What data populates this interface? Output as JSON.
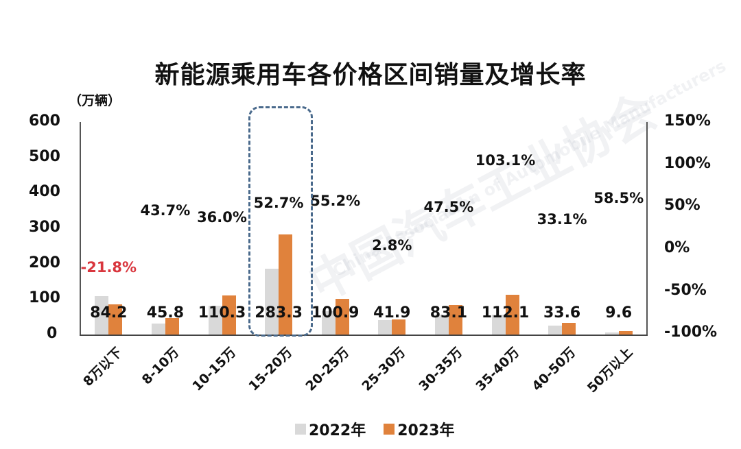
{
  "title": "新能源乘用车各价格区间销量及增长率",
  "left_axis_unit": "（万辆）",
  "left_axis_ticks": [
    "600",
    "500",
    "400",
    "300",
    "200",
    "100",
    "0"
  ],
  "right_axis_ticks": [
    "150%",
    "100%",
    "50%",
    "0%",
    "-50%",
    "-100%"
  ],
  "legend": [
    {
      "label": "2022年",
      "color": "#d9d9d9"
    },
    {
      "label": "2023年",
      "color": "#e0823c"
    }
  ],
  "watermark": {
    "cn": "中国汽车工业协会",
    "en": "China Association of Automobile Manufacturers"
  },
  "highlight_category": "15-20万",
  "categories": [
    {
      "label": "8万以下",
      "v2022": 107.7,
      "v2023": 84.2,
      "v2023_label": "84.2",
      "growth": -21.8,
      "growth_label": "-21.8%"
    },
    {
      "label": "8-10万",
      "v2022": 31.9,
      "v2023": 45.8,
      "v2023_label": "45.8",
      "growth": 43.7,
      "growth_label": "43.7%"
    },
    {
      "label": "10-15万",
      "v2022": 81.1,
      "v2023": 110.3,
      "v2023_label": "110.3",
      "growth": 36.0,
      "growth_label": "36.0%"
    },
    {
      "label": "15-20万",
      "v2022": 185.5,
      "v2023": 283.3,
      "v2023_label": "283.3",
      "growth": 52.7,
      "growth_label": "52.7%"
    },
    {
      "label": "20-25万",
      "v2022": 65.0,
      "v2023": 100.9,
      "v2023_label": "100.9",
      "growth": 55.2,
      "growth_label": "55.2%"
    },
    {
      "label": "25-30万",
      "v2022": 40.8,
      "v2023": 41.9,
      "v2023_label": "41.9",
      "growth": 2.8,
      "growth_label": "2.8%"
    },
    {
      "label": "30-35万",
      "v2022": 56.3,
      "v2023": 83.1,
      "v2023_label": "83.1",
      "growth": 47.5,
      "growth_label": "47.5%"
    },
    {
      "label": "35-40万",
      "v2022": 55.2,
      "v2023": 112.1,
      "v2023_label": "112.1",
      "growth": 103.1,
      "growth_label": "103.1%"
    },
    {
      "label": "40-50万",
      "v2022": 25.2,
      "v2023": 33.6,
      "v2023_label": "33.6",
      "growth": 33.1,
      "growth_label": "33.1%"
    },
    {
      "label": "50万以上",
      "v2022": 6.1,
      "v2023": 9.6,
      "v2023_label": "9.6",
      "growth": 58.5,
      "growth_label": "58.5%"
    }
  ],
  "chart_data": {
    "type": "bar",
    "title": "新能源乘用车各价格区间销量及增长率",
    "xlabel": "",
    "ylabel": "万辆",
    "y2label": "增长率",
    "ylim": [
      0,
      600
    ],
    "y2lim": [
      -100,
      150
    ],
    "grid": false,
    "legend_position": "bottom",
    "categories": [
      "8万以下",
      "8-10万",
      "10-15万",
      "15-20万",
      "20-25万",
      "25-30万",
      "30-35万",
      "35-40万",
      "40-50万",
      "50万以上"
    ],
    "series": [
      {
        "name": "2022年",
        "type": "bar",
        "axis": "left",
        "values": [
          107.7,
          31.9,
          81.1,
          185.5,
          65.0,
          40.8,
          56.3,
          55.2,
          25.2,
          6.1
        ],
        "estimated": true
      },
      {
        "name": "2023年",
        "type": "bar",
        "axis": "left",
        "values": [
          84.2,
          45.8,
          110.3,
          283.3,
          100.9,
          41.9,
          83.1,
          112.1,
          33.6,
          9.6
        ]
      },
      {
        "name": "增长率",
        "type": "label",
        "axis": "right",
        "unit": "%",
        "values": [
          -21.8,
          43.7,
          36.0,
          52.7,
          55.2,
          2.8,
          47.5,
          103.1,
          33.1,
          58.5
        ]
      }
    ],
    "annotations": [
      "Dashed highlight box around 15-20万 category"
    ]
  }
}
